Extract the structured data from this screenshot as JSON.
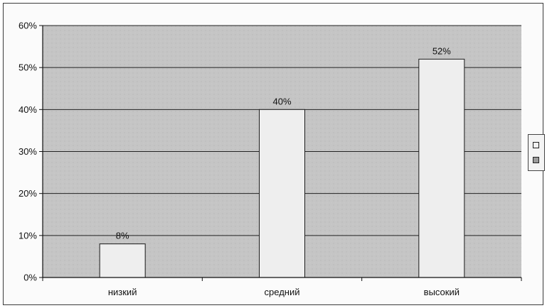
{
  "chart_data": {
    "type": "bar",
    "categories": [
      "низкий",
      "средний",
      "высокий"
    ],
    "values": [
      8,
      40,
      52
    ],
    "data_labels": [
      "8%",
      "40%",
      "52%"
    ],
    "y_ticks": [
      "0%",
      "10%",
      "20%",
      "30%",
      "40%",
      "50%",
      "60%"
    ],
    "y_tick_values": [
      0,
      10,
      20,
      30,
      40,
      50,
      60
    ],
    "ylim": [
      0,
      60
    ],
    "grid": true,
    "legend": "right",
    "colors": {
      "plot_background": "#c4c4c4",
      "bar_fill": "#eeeeee",
      "bar_stroke": "#1a1a1a",
      "gridline": "#222222",
      "legend_swatch_1": "#f2f2f2",
      "legend_swatch_2": "#9a9a9a"
    }
  }
}
